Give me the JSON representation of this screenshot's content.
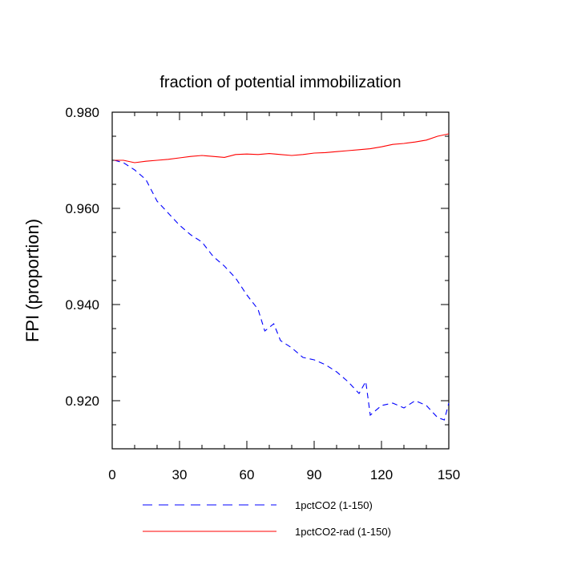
{
  "chart_data": {
    "type": "line",
    "title": "fraction of potential immobilization",
    "xlabel": "",
    "ylabel": "FPI  (proportion)",
    "xlim": [
      0,
      150
    ],
    "ylim": [
      0.91,
      0.98
    ],
    "x_ticks": [
      0,
      30,
      60,
      90,
      120,
      150
    ],
    "x_tick_labels": [
      "0",
      "30",
      "60",
      "90",
      "120",
      "150"
    ],
    "y_ticks": [
      0.92,
      0.94,
      0.96,
      0.98
    ],
    "y_tick_labels": [
      "0.920",
      "0.940",
      "0.960",
      "0.980"
    ],
    "grid": false,
    "legend_position": "bottom",
    "series": [
      {
        "name": "1pctCO2 (1-150)",
        "color": "#0000ff",
        "line_style": "dashed",
        "points": [
          [
            1,
            0.97
          ],
          [
            5,
            0.9695
          ],
          [
            10,
            0.968
          ],
          [
            15,
            0.966
          ],
          [
            20,
            0.9615
          ],
          [
            25,
            0.959
          ],
          [
            30,
            0.9565
          ],
          [
            35,
            0.9545
          ],
          [
            40,
            0.953
          ],
          [
            45,
            0.95
          ],
          [
            50,
            0.948
          ],
          [
            55,
            0.9455
          ],
          [
            60,
            0.942
          ],
          [
            65,
            0.939
          ],
          [
            68,
            0.9345
          ],
          [
            72,
            0.936
          ],
          [
            75,
            0.9325
          ],
          [
            80,
            0.931
          ],
          [
            85,
            0.929
          ],
          [
            90,
            0.9285
          ],
          [
            95,
            0.9275
          ],
          [
            100,
            0.926
          ],
          [
            105,
            0.924
          ],
          [
            110,
            0.9215
          ],
          [
            113,
            0.924
          ],
          [
            115,
            0.917
          ],
          [
            120,
            0.919
          ],
          [
            125,
            0.9195
          ],
          [
            130,
            0.9185
          ],
          [
            135,
            0.92
          ],
          [
            140,
            0.919
          ],
          [
            145,
            0.9165
          ],
          [
            148,
            0.916
          ],
          [
            150,
            0.9195
          ]
        ]
      },
      {
        "name": "1pctCO2-rad (1-150)",
        "color": "#ff0000",
        "line_style": "solid",
        "points": [
          [
            1,
            0.97
          ],
          [
            5,
            0.97
          ],
          [
            10,
            0.9695
          ],
          [
            15,
            0.9698
          ],
          [
            20,
            0.97
          ],
          [
            25,
            0.9702
          ],
          [
            30,
            0.9705
          ],
          [
            35,
            0.9708
          ],
          [
            40,
            0.971
          ],
          [
            45,
            0.9708
          ],
          [
            50,
            0.9706
          ],
          [
            55,
            0.9712
          ],
          [
            60,
            0.9713
          ],
          [
            65,
            0.9712
          ],
          [
            70,
            0.9714
          ],
          [
            75,
            0.9712
          ],
          [
            80,
            0.971
          ],
          [
            85,
            0.9712
          ],
          [
            90,
            0.9715
          ],
          [
            95,
            0.9716
          ],
          [
            100,
            0.9718
          ],
          [
            105,
            0.972
          ],
          [
            110,
            0.9722
          ],
          [
            115,
            0.9724
          ],
          [
            120,
            0.9728
          ],
          [
            125,
            0.9733
          ],
          [
            130,
            0.9735
          ],
          [
            135,
            0.9738
          ],
          [
            140,
            0.9742
          ],
          [
            145,
            0.975
          ],
          [
            150,
            0.9755
          ]
        ]
      }
    ]
  }
}
